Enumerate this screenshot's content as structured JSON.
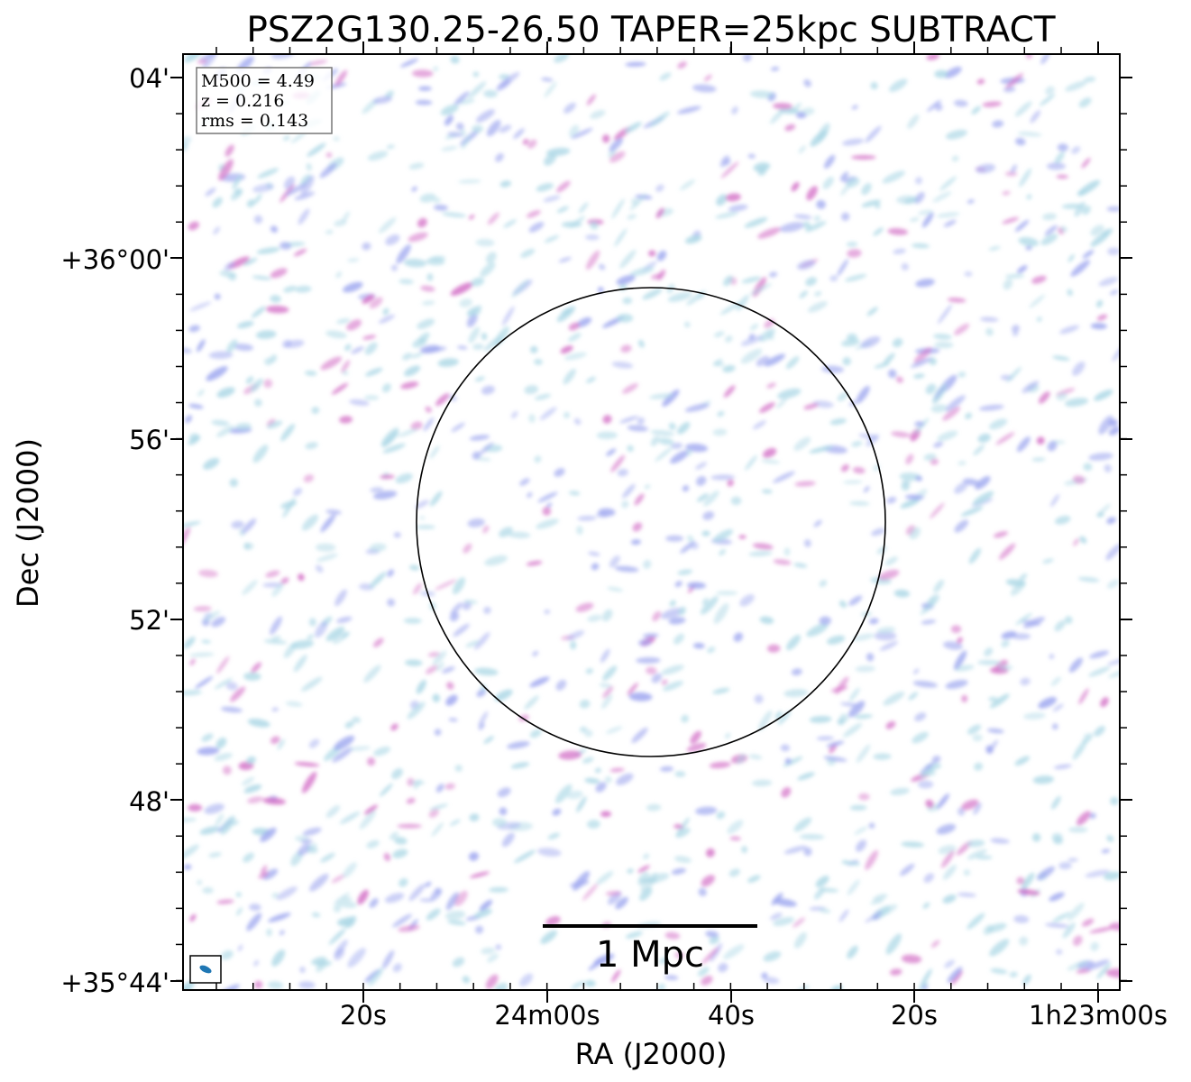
{
  "title": "PSZ2G130.25-26.50 TAPER=25kpc SUBTRACT",
  "axes": {
    "xlabel": "RA (J2000)",
    "ylabel": "Dec (J2000)",
    "x_ticks": [
      "20s",
      "24m00s",
      "40s",
      "20s",
      "1h23m00s"
    ],
    "y_ticks": [
      "04'",
      "+36°00'",
      "56'",
      "52'",
      "48'",
      "+35°44'"
    ]
  },
  "info_box": {
    "lines": [
      "M500 = 4.49",
      "z = 0.216",
      "rms = 0.143"
    ]
  },
  "scale_bar": {
    "label": "1 Mpc"
  },
  "colors": {
    "emission_low": "#add8e6",
    "emission_mid": "#9ea7ef",
    "emission_high": "#d36fc6",
    "beam": "#1f77b4",
    "frame": "#000000"
  }
}
